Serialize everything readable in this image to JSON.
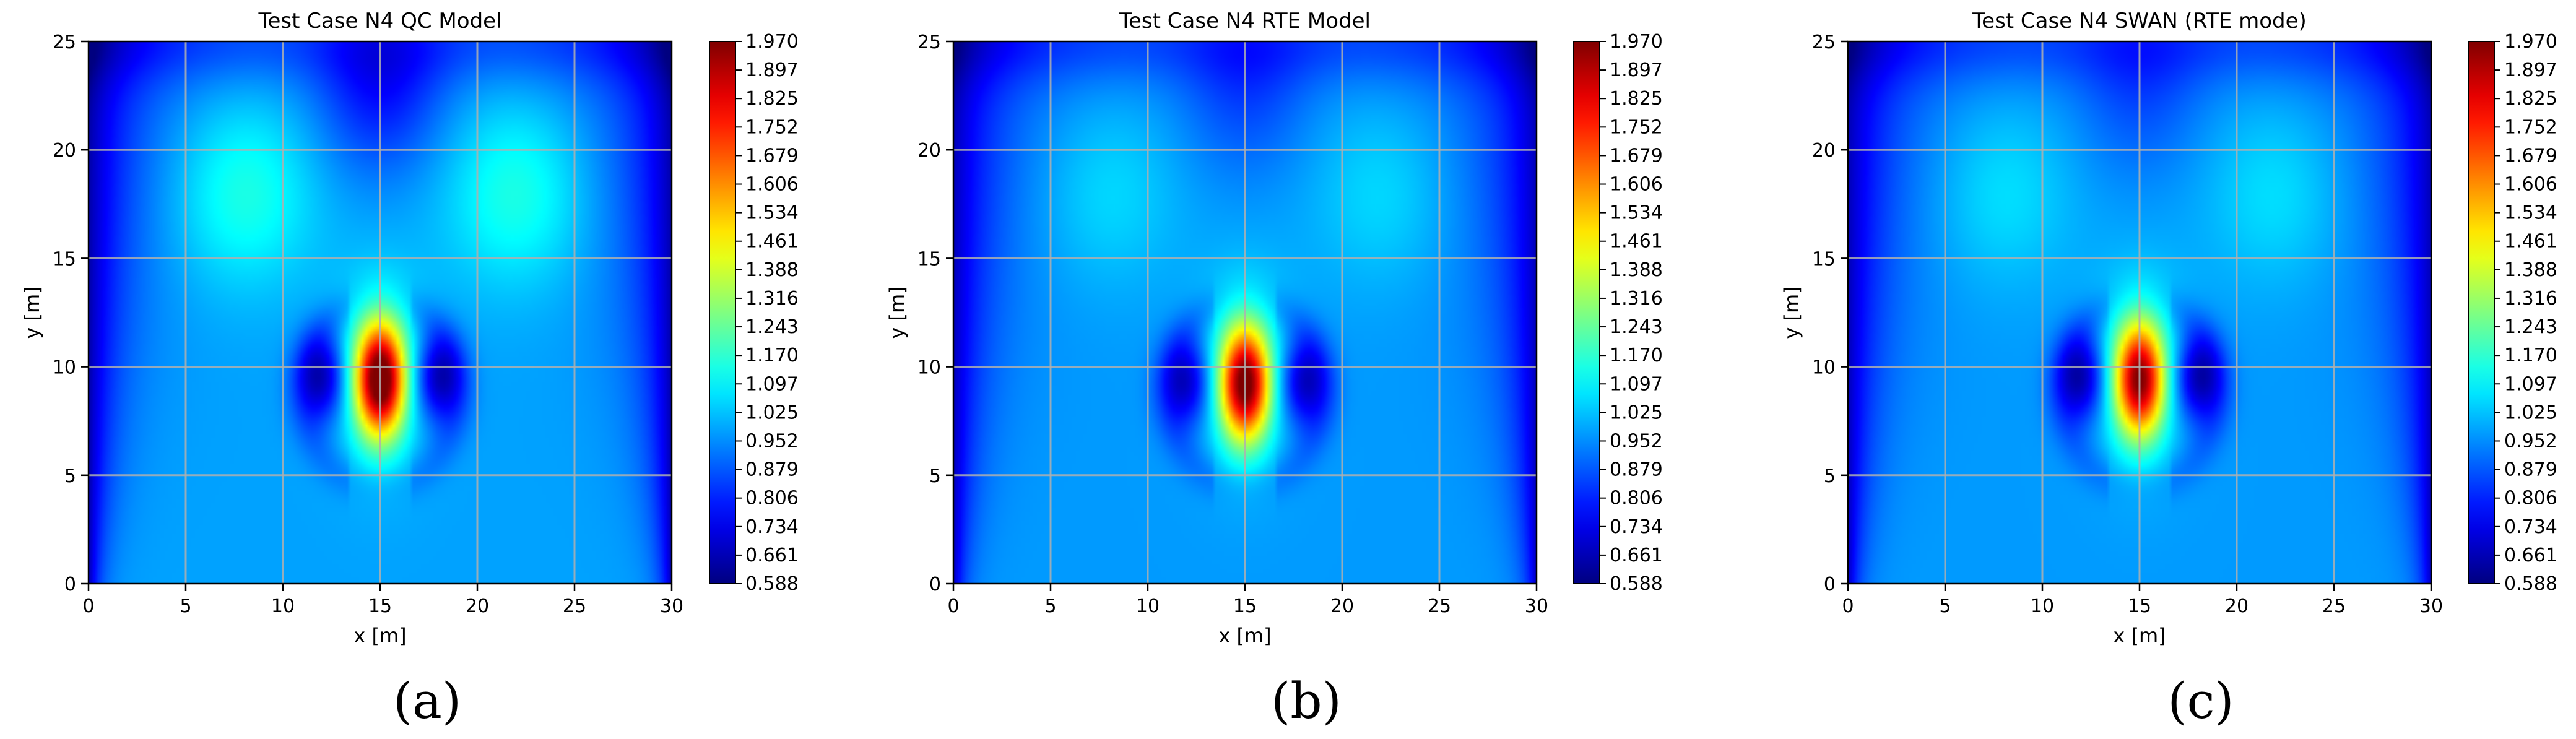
{
  "figure": {
    "captions": [
      "(a)",
      "(b)",
      "(c)"
    ]
  },
  "chart_data": [
    {
      "type": "heatmap",
      "title": "Test Case N4 QC Model",
      "xlabel": "x [m]",
      "ylabel": "y [m]",
      "xlim": [
        0,
        30
      ],
      "ylim": [
        0,
        25
      ],
      "xticks": [
        0,
        5,
        10,
        15,
        20,
        25,
        30
      ],
      "yticks": [
        0,
        5,
        10,
        15,
        20,
        25
      ],
      "grid": true,
      "colormap": "jet",
      "colorbar": {
        "min": 0.588,
        "max": 1.97,
        "ticks": [
          "0.588",
          "0.661",
          "0.734",
          "0.806",
          "0.879",
          "0.952",
          "1.025",
          "1.097",
          "1.170",
          "1.243",
          "1.316",
          "1.388",
          "1.461",
          "1.534",
          "1.606",
          "1.679",
          "1.752",
          "1.825",
          "1.897",
          "1.970"
        ]
      },
      "field": {
        "background": 0.98,
        "peak": {
          "x": 15,
          "y": 9.4,
          "value": 1.97
        },
        "shadow_lobes": [
          {
            "x": 12,
            "y": 9.5,
            "value": 0.64
          },
          {
            "x": 18,
            "y": 9.5,
            "value": 0.64
          }
        ],
        "upper_lobes": [
          {
            "x": 8,
            "y": 18,
            "value": 1.15
          },
          {
            "x": 22,
            "y": 18,
            "value": 1.15
          }
        ],
        "top_center_min": {
          "x": 15,
          "y": 23,
          "value": 0.78
        },
        "edge_min": 0.64
      }
    },
    {
      "type": "heatmap",
      "title": "Test Case N4 RTE Model",
      "xlabel": "x [m]",
      "ylabel": "y [m]",
      "xlim": [
        0,
        30
      ],
      "ylim": [
        0,
        25
      ],
      "xticks": [
        0,
        5,
        10,
        15,
        20,
        25,
        30
      ],
      "yticks": [
        0,
        5,
        10,
        15,
        20,
        25
      ],
      "grid": true,
      "colormap": "jet",
      "colorbar": {
        "min": 0.588,
        "max": 1.97,
        "ticks": [
          "0.588",
          "0.661",
          "0.734",
          "0.806",
          "0.879",
          "0.952",
          "1.025",
          "1.097",
          "1.170",
          "1.243",
          "1.316",
          "1.388",
          "1.461",
          "1.534",
          "1.606",
          "1.679",
          "1.752",
          "1.825",
          "1.897",
          "1.970"
        ]
      },
      "field": {
        "background": 0.97,
        "peak": {
          "x": 15,
          "y": 9.2,
          "value": 1.9
        },
        "shadow_lobes": [
          {
            "x": 12,
            "y": 9.3,
            "value": 0.66
          },
          {
            "x": 18,
            "y": 9.3,
            "value": 0.66
          }
        ],
        "upper_lobes": [
          {
            "x": 8,
            "y": 18,
            "value": 1.06
          },
          {
            "x": 22,
            "y": 18,
            "value": 1.06
          }
        ],
        "top_center_min": {
          "x": 15,
          "y": 23,
          "value": 0.85
        },
        "edge_min": 0.66
      }
    },
    {
      "type": "heatmap",
      "title": "Test Case N4 SWAN (RTE mode)",
      "xlabel": "x [m]",
      "ylabel": "y [m]",
      "xlim": [
        0,
        30
      ],
      "ylim": [
        0,
        25
      ],
      "xticks": [
        0,
        5,
        10,
        15,
        20,
        25,
        30
      ],
      "yticks": [
        0,
        5,
        10,
        15,
        20,
        25
      ],
      "grid": true,
      "colormap": "jet",
      "colorbar": {
        "min": 0.588,
        "max": 1.97,
        "ticks": [
          "0.588",
          "0.661",
          "0.734",
          "0.806",
          "0.879",
          "0.952",
          "1.025",
          "1.097",
          "1.170",
          "1.243",
          "1.316",
          "1.388",
          "1.461",
          "1.534",
          "1.606",
          "1.679",
          "1.752",
          "1.825",
          "1.897",
          "1.970"
        ]
      },
      "field": {
        "background": 0.97,
        "peak": {
          "x": 15,
          "y": 9.4,
          "value": 1.85
        },
        "shadow_lobes": [
          {
            "x": 12,
            "y": 9.5,
            "value": 0.63
          },
          {
            "x": 18,
            "y": 9.5,
            "value": 0.63
          }
        ],
        "upper_lobes": [
          {
            "x": 8,
            "y": 18,
            "value": 1.07
          },
          {
            "x": 22,
            "y": 18,
            "value": 1.07
          }
        ],
        "top_center_min": {
          "x": 15,
          "y": 23,
          "value": 0.86
        },
        "edge_min": 0.66
      }
    }
  ]
}
